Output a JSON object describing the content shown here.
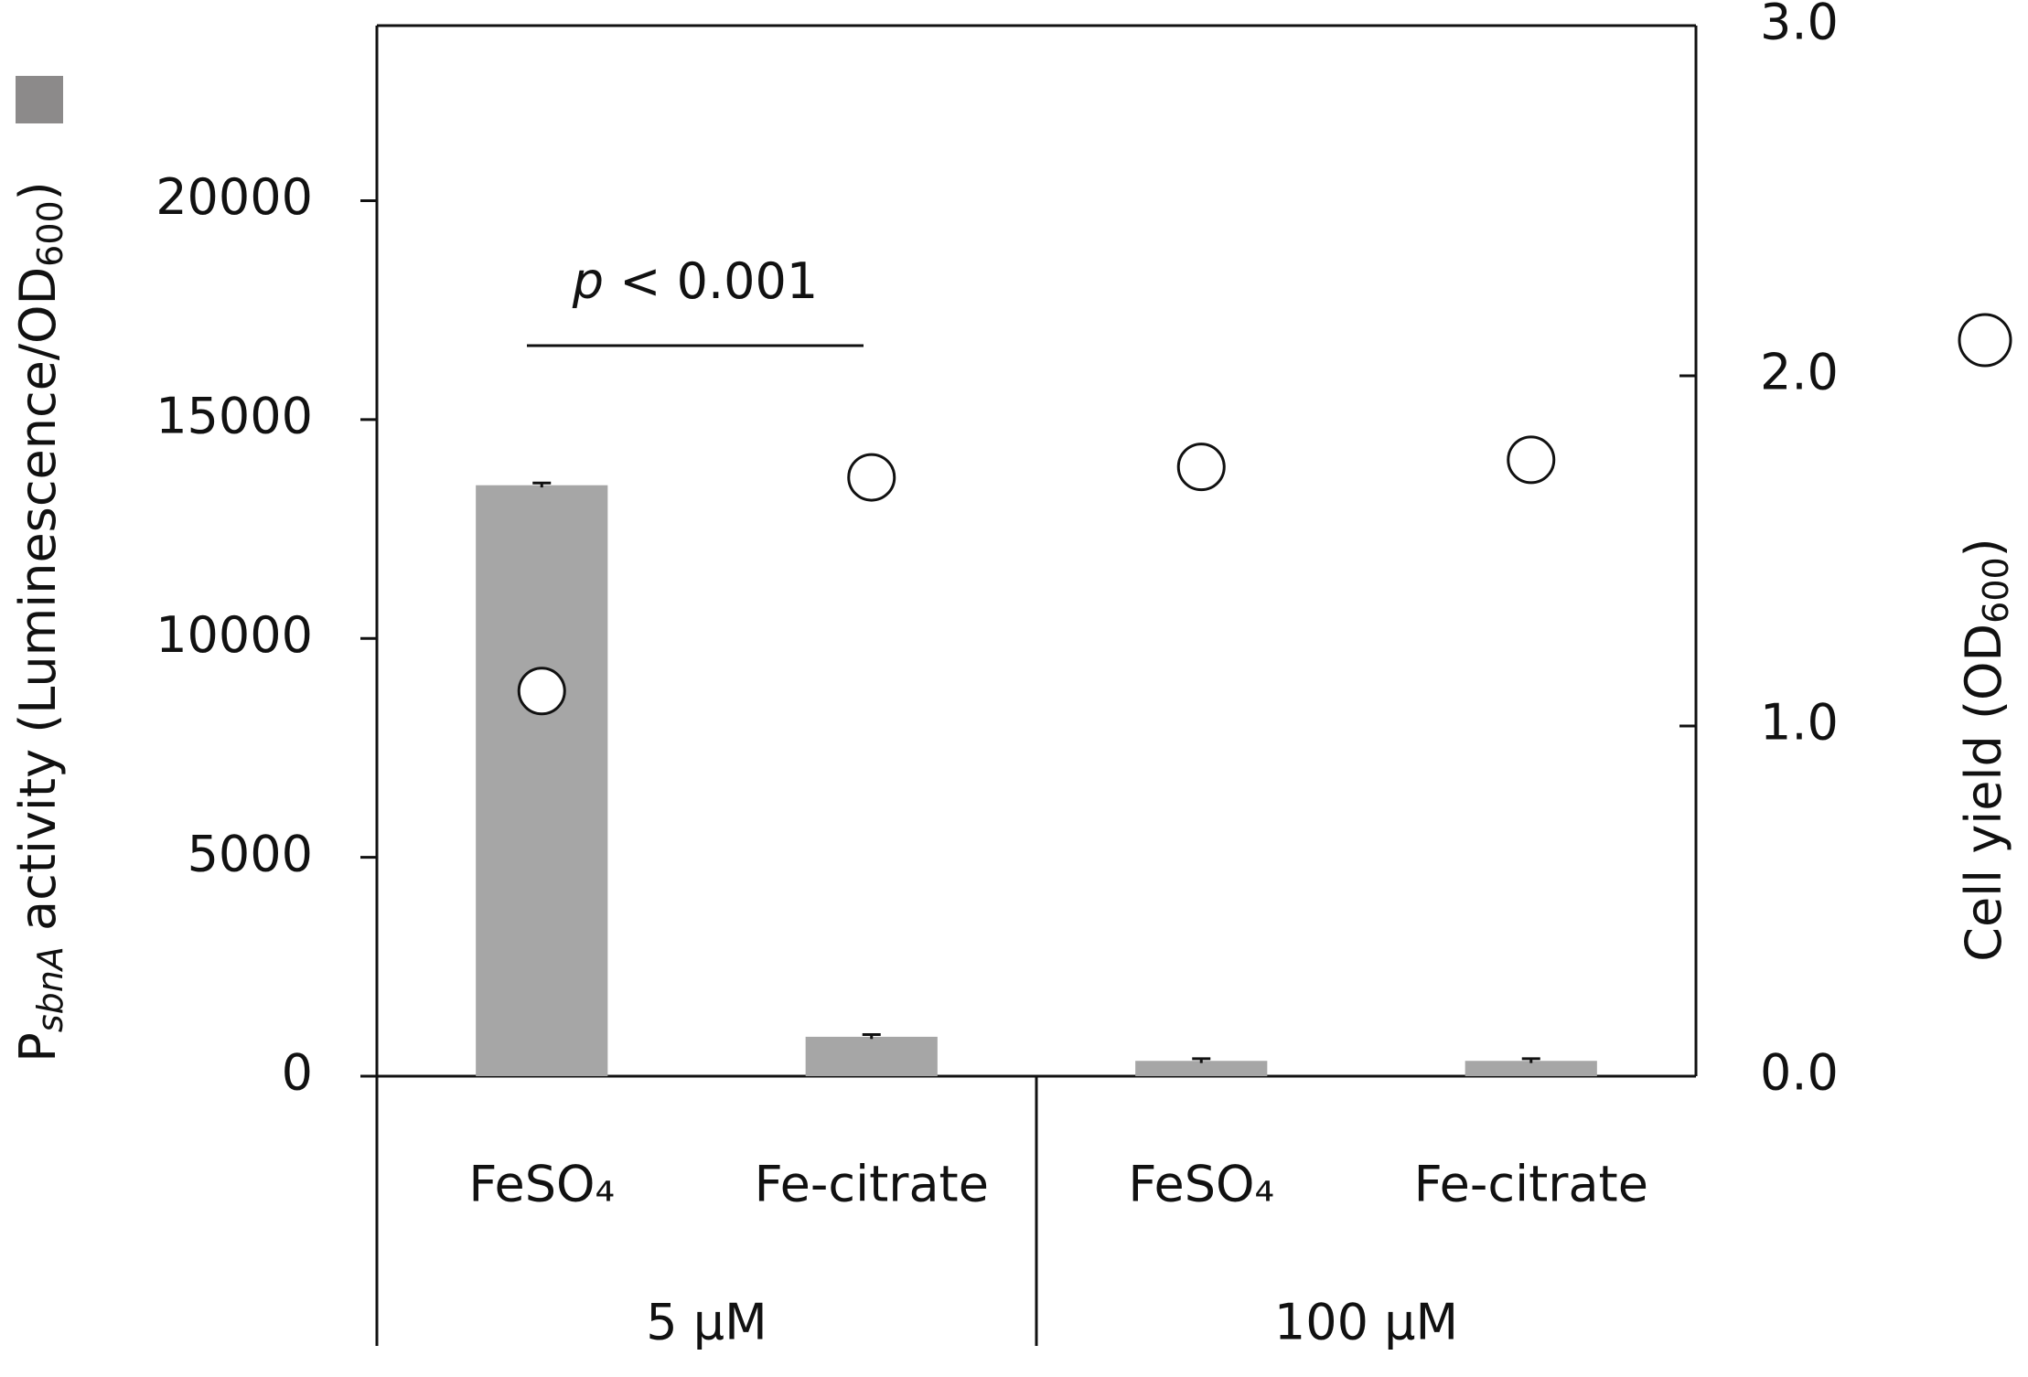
{
  "chart_data": {
    "type": "bar",
    "ylabel": [
      "P",
      "sbnA",
      " activity (Luminescence/OD",
      "600",
      ")"
    ],
    "y2label": [
      "Cell yield (OD",
      "600",
      ")"
    ],
    "annotation": [
      "p",
      " < 0.001"
    ],
    "categories": [
      "FeSO₄",
      "Fe-citrate",
      "FeSO₄",
      "Fe-citrate"
    ],
    "groups": [
      "5 µM",
      "100 µM"
    ],
    "series": [
      {
        "type": "bar",
        "color": "#a6a6a6",
        "values": [
          13500,
          900,
          350,
          350
        ],
        "errors": [
          50,
          50,
          50,
          50
        ]
      },
      {
        "type": "scatter",
        "axis": "y2",
        "color": "#ffffff",
        "values": [
          1.1,
          1.71,
          1.74,
          1.76
        ]
      }
    ],
    "ylim": [
      0,
      24000
    ],
    "yticks": [
      0,
      5000,
      10000,
      15000,
      20000
    ],
    "y2lim": [
      0,
      3
    ],
    "y2ticks": [
      {
        "value": 0,
        "label": "0.0"
      },
      {
        "value": 1,
        "label": "1.0"
      },
      {
        "value": 2,
        "label": "2.0"
      },
      {
        "value": 3,
        "label": "3.0"
      }
    ]
  }
}
